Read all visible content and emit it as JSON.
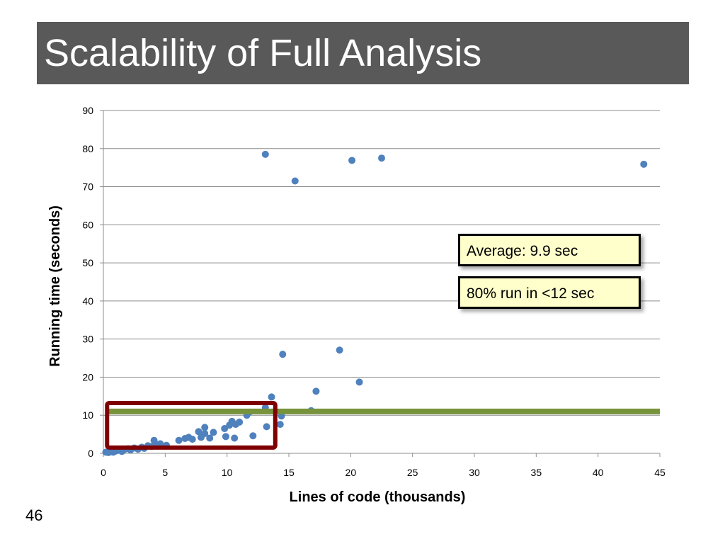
{
  "slide": {
    "title": "Scalability of Full Analysis",
    "page_number": "46"
  },
  "annotations": {
    "average": "Average: 9.9 sec",
    "percentile": "80% run in <12 sec"
  },
  "chart_data": {
    "type": "scatter",
    "title": "",
    "xlabel": "Lines of code (thousands)",
    "ylabel": "Running time (seconds)",
    "xlim": [
      0,
      45
    ],
    "ylim": [
      0,
      90
    ],
    "xticks": [
      0,
      5,
      10,
      15,
      20,
      25,
      30,
      35,
      40,
      45
    ],
    "yticks": [
      0,
      10,
      20,
      30,
      40,
      50,
      60,
      70,
      80,
      90
    ],
    "grid": "horizontal",
    "legend": "none",
    "reference_line": {
      "y": 11,
      "x_from": 0,
      "x_to": 45,
      "color": "#77933c"
    },
    "highlight_region": {
      "x": [
        0.3,
        13.9
      ],
      "y": [
        1.5,
        13.2
      ],
      "color": "#7f0000"
    },
    "marker_color": "#4f81bd",
    "series": [
      {
        "points": [
          [
            0.2,
            0.3
          ],
          [
            0.4,
            0.2
          ],
          [
            0.6,
            0.4
          ],
          [
            0.8,
            0.3
          ],
          [
            1.0,
            0.6
          ],
          [
            1.2,
            0.8
          ],
          [
            1.5,
            0.5
          ],
          [
            1.7,
            1.0
          ],
          [
            2.0,
            1.2
          ],
          [
            2.2,
            0.9
          ],
          [
            2.5,
            1.4
          ],
          [
            2.8,
            1.1
          ],
          [
            3.1,
            1.6
          ],
          [
            3.3,
            1.3
          ],
          [
            3.6,
            2.0
          ],
          [
            3.9,
            1.8
          ],
          [
            4.1,
            3.4
          ],
          [
            4.3,
            2.2
          ],
          [
            4.6,
            2.5
          ],
          [
            5.1,
            2.1
          ],
          [
            6.1,
            3.4
          ],
          [
            6.6,
            3.9
          ],
          [
            6.9,
            4.2
          ],
          [
            7.2,
            3.7
          ],
          [
            7.7,
            5.7
          ],
          [
            7.9,
            4.2
          ],
          [
            8.2,
            5.2
          ],
          [
            8.2,
            6.8
          ],
          [
            8.6,
            4.0
          ],
          [
            8.9,
            5.5
          ],
          [
            9.8,
            6.5
          ],
          [
            9.9,
            4.4
          ],
          [
            10.2,
            7.4
          ],
          [
            10.4,
            8.4
          ],
          [
            10.6,
            4.0
          ],
          [
            10.7,
            7.6
          ],
          [
            11.0,
            8.2
          ],
          [
            11.6,
            10.0
          ],
          [
            11.8,
            10.8
          ],
          [
            12.1,
            4.6
          ],
          [
            13.1,
            12.0
          ],
          [
            13.2,
            7.0
          ],
          [
            13.6,
            14.8
          ],
          [
            14.3,
            7.6
          ],
          [
            14.4,
            9.8
          ],
          [
            13.1,
            78.5
          ],
          [
            15.5,
            71.5
          ],
          [
            14.5,
            26.0
          ],
          [
            17.2,
            16.3
          ],
          [
            16.8,
            11.2
          ],
          [
            19.1,
            27.1
          ],
          [
            20.1,
            76.9
          ],
          [
            20.7,
            18.7
          ],
          [
            22.5,
            77.5
          ],
          [
            43.7,
            75.9
          ]
        ]
      }
    ]
  }
}
